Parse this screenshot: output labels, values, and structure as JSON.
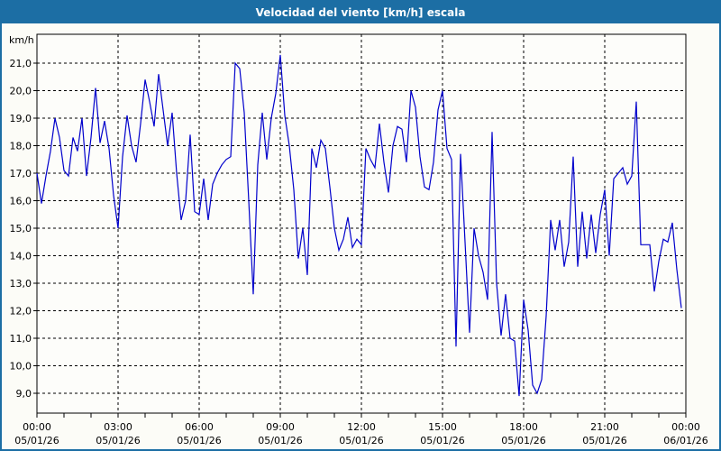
{
  "window": {
    "title": "Velocidad del viento [km/h] escala"
  },
  "colors": {
    "titlebar_bg": "#1c6ea4",
    "window_border": "#1c6ea4",
    "background": "#fcfcf7",
    "plot_background": "#fdfdfa",
    "line": "#0000cc",
    "grid": "#000000",
    "axis": "#000000",
    "text": "#000000",
    "title_text": "#ffffff"
  },
  "chart_data": {
    "type": "line",
    "title": "Velocidad del viento [km/h] escala",
    "ylabel": "km/h",
    "xlabel": "",
    "grid": "dashed black, horizontal every 1 km/h, vertical every 3 hours, minor x ticks hourly",
    "legend_position": "none",
    "ylim": [
      8.28,
      22.05
    ],
    "y_tick_values": [
      21,
      20,
      19,
      18,
      17,
      16,
      15,
      14,
      13,
      12,
      11,
      10,
      9
    ],
    "y_tick_labels": [
      "21,0",
      "20,0",
      "19,0",
      "18,0",
      "17,0",
      "16,0",
      "15,0",
      "14,0",
      "13,0",
      "12,0",
      "11,0",
      "10,0",
      "9,0"
    ],
    "x_major_ticks": [
      {
        "time": "00:00",
        "date": "05/01/26",
        "hour": 0
      },
      {
        "time": "03:00",
        "date": "05/01/26",
        "hour": 3
      },
      {
        "time": "06:00",
        "date": "05/01/26",
        "hour": 6
      },
      {
        "time": "09:00",
        "date": "05/01/26",
        "hour": 9
      },
      {
        "time": "12:00",
        "date": "05/01/26",
        "hour": 12
      },
      {
        "time": "15:00",
        "date": "05/01/26",
        "hour": 15
      },
      {
        "time": "18:00",
        "date": "05/01/26",
        "hour": 18
      },
      {
        "time": "21:00",
        "date": "05/01/26",
        "hour": 21
      },
      {
        "time": "00:00",
        "date": "06/01/26",
        "hour": 24
      }
    ],
    "x_minor_tick_hours": 1,
    "x_total_hours": 24,
    "series": [
      {
        "name": "Velocidad del viento [km/h]",
        "color": "#0000cc",
        "start_time": "00:00",
        "interval_minutes": 10,
        "values": [
          17.0,
          15.9,
          16.9,
          17.8,
          19.0,
          18.3,
          17.1,
          16.9,
          18.3,
          17.8,
          19.0,
          16.9,
          18.3,
          20.1,
          18.1,
          18.9,
          17.9,
          16.2,
          15.0,
          17.6,
          19.1,
          18.0,
          17.4,
          18.8,
          20.4,
          19.6,
          18.7,
          20.6,
          19.3,
          18.0,
          19.2,
          17.0,
          15.3,
          16.0,
          18.4,
          15.6,
          15.5,
          16.8,
          15.3,
          16.6,
          17.0,
          17.3,
          17.5,
          17.6,
          21.0,
          20.8,
          19.2,
          16.0,
          12.6,
          17.3,
          19.2,
          17.5,
          19.0,
          19.9,
          21.3,
          19.1,
          18.0,
          16.4,
          13.9,
          15.0,
          13.3,
          17.9,
          17.2,
          18.2,
          17.9,
          16.5,
          15.0,
          14.2,
          14.6,
          15.4,
          14.3,
          14.6,
          14.4,
          17.9,
          17.5,
          17.2,
          18.8,
          17.4,
          16.3,
          18.0,
          18.7,
          18.6,
          17.4,
          20.0,
          19.4,
          17.6,
          16.5,
          16.4,
          17.4,
          19.3,
          20.0,
          17.9,
          17.5,
          10.7,
          17.7,
          14.5,
          11.2,
          15.0,
          14.0,
          13.4,
          12.4,
          18.5,
          13.0,
          11.1,
          12.6,
          11.0,
          10.9,
          8.9,
          12.4,
          11.3,
          9.3,
          9.0,
          9.5,
          11.8,
          15.3,
          14.2,
          15.3,
          13.6,
          14.5,
          17.6,
          13.6,
          15.6,
          13.9,
          15.5,
          14.1,
          15.5,
          16.4,
          14.0,
          16.8,
          17.0,
          17.2,
          16.6,
          16.9,
          19.6,
          14.4,
          14.4,
          14.4,
          12.7,
          13.8,
          14.6,
          14.5,
          15.2,
          13.5,
          12.1
        ]
      }
    ]
  }
}
